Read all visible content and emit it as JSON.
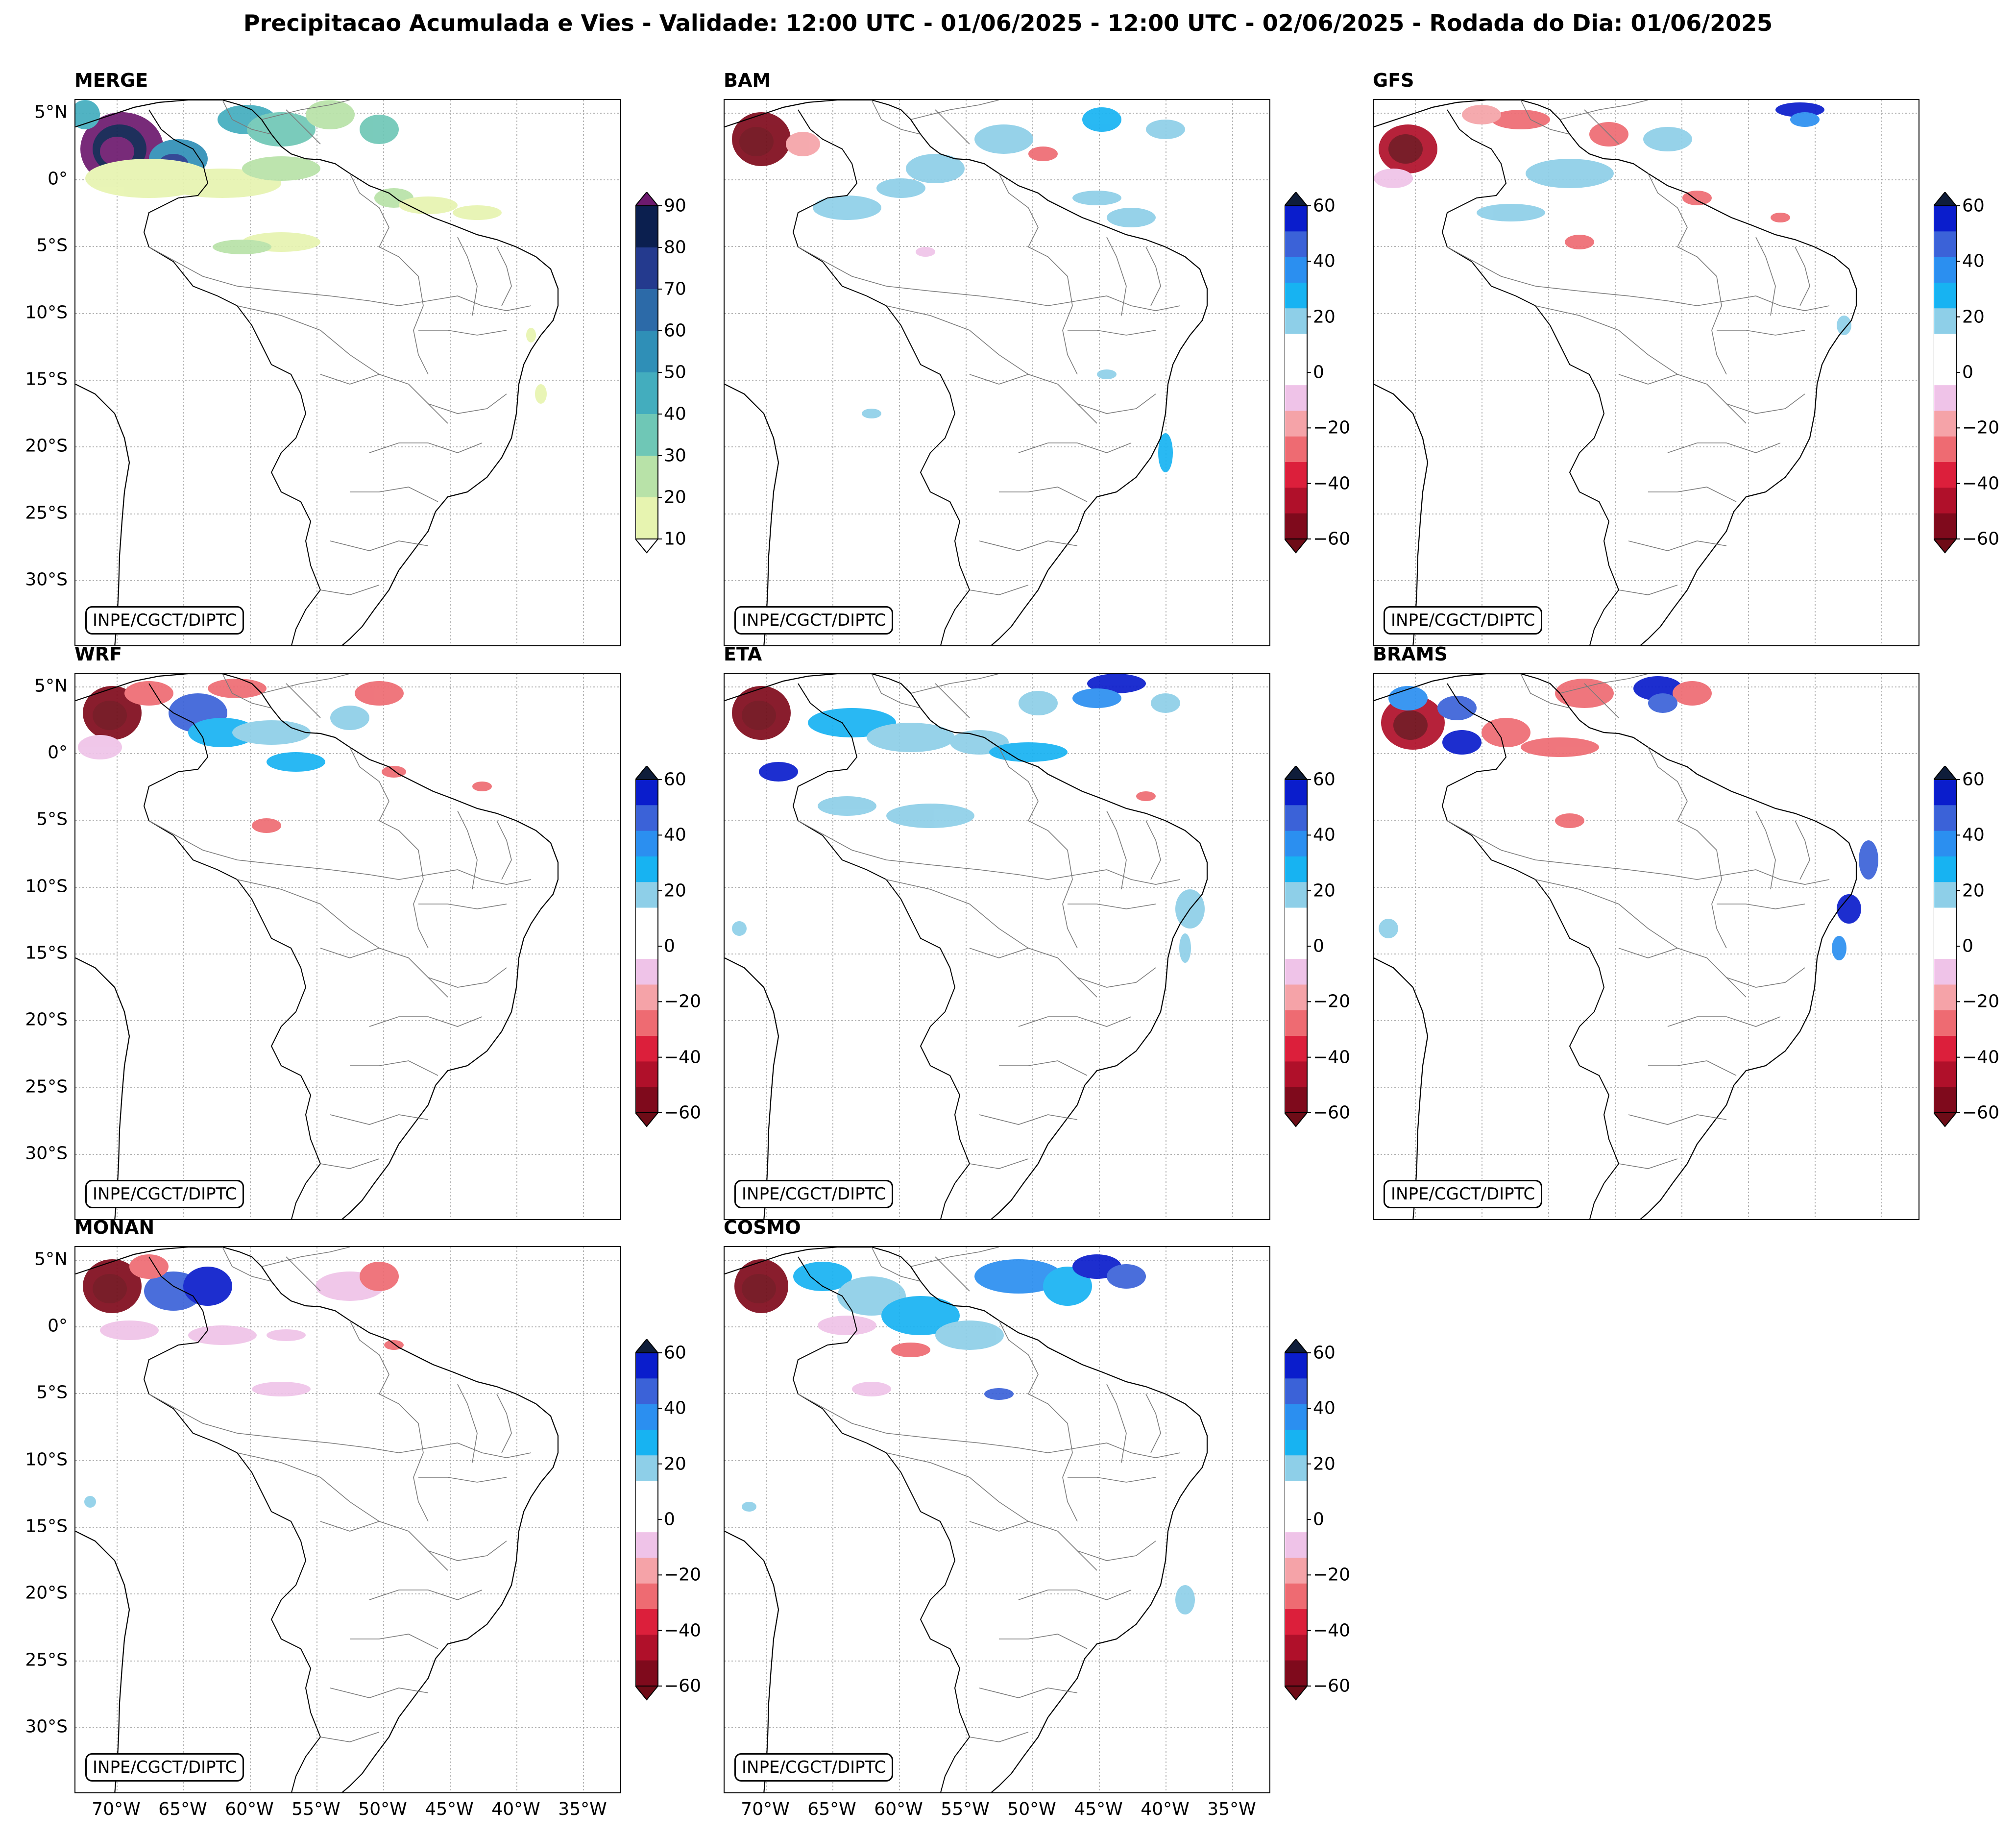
{
  "title": "Precipitacao Acumulada e Vies - Validade: 12:00 UTC - 01/06/2025 - 12:00 UTC - 02/06/2025 - Rodada do Dia: 01/06/2025",
  "credit": "INPE/CGCT/DIPTC",
  "lat_labels": [
    "5°N",
    "0°",
    "5°S",
    "10°S",
    "15°S",
    "20°S",
    "25°S",
    "30°S"
  ],
  "lon_labels": [
    "70°W",
    "65°W",
    "60°W",
    "55°W",
    "50°W",
    "45°W",
    "40°W",
    "35°W"
  ],
  "colorbars": {
    "precip": {
      "ticks": [
        "90",
        "80",
        "70",
        "60",
        "50",
        "40",
        "30",
        "20",
        "10"
      ],
      "colors": [
        "#0b1f4f",
        "#243a8e",
        "#2c6aa8",
        "#2f8fb7",
        "#43adbe",
        "#6fc7b6",
        "#b8e2a8",
        "#e7f4b0"
      ],
      "top_arrow": "#6d1a6e",
      "bottom_arrow": "#ffffff"
    },
    "bias": {
      "ticks": [
        "60",
        "40",
        "20",
        "0",
        "−20",
        "−40",
        "−60"
      ],
      "colors": [
        "#0a1dcc",
        "#3b62d8",
        "#2b8ff0",
        "#17b3f2",
        "#8ecfe8",
        "#ffffff",
        "#ffffff",
        "#efc3e8",
        "#f5a3a8",
        "#ee6b72",
        "#dc1f3b",
        "#b0102a",
        "#7f0a1c"
      ],
      "top_arrow": "#0f1d3a",
      "bottom_arrow": "#6e0c17"
    }
  },
  "panels": [
    {
      "name": "MERGE",
      "colorbar": "precip",
      "show_lat": true,
      "show_lon": false
    },
    {
      "name": "BAM",
      "colorbar": "bias",
      "show_lat": false,
      "show_lon": false
    },
    {
      "name": "GFS",
      "colorbar": "bias",
      "show_lat": false,
      "show_lon": false
    },
    {
      "name": "WRF",
      "colorbar": "bias",
      "show_lat": true,
      "show_lon": false
    },
    {
      "name": "ETA",
      "colorbar": "bias",
      "show_lat": false,
      "show_lon": false
    },
    {
      "name": "BRAMS",
      "colorbar": "bias",
      "show_lat": false,
      "show_lon": false
    },
    {
      "name": "MONAN",
      "colorbar": "bias",
      "show_lat": true,
      "show_lon": true
    },
    {
      "name": "COSMO",
      "colorbar": "bias",
      "show_lat": false,
      "show_lon": true
    }
  ]
}
